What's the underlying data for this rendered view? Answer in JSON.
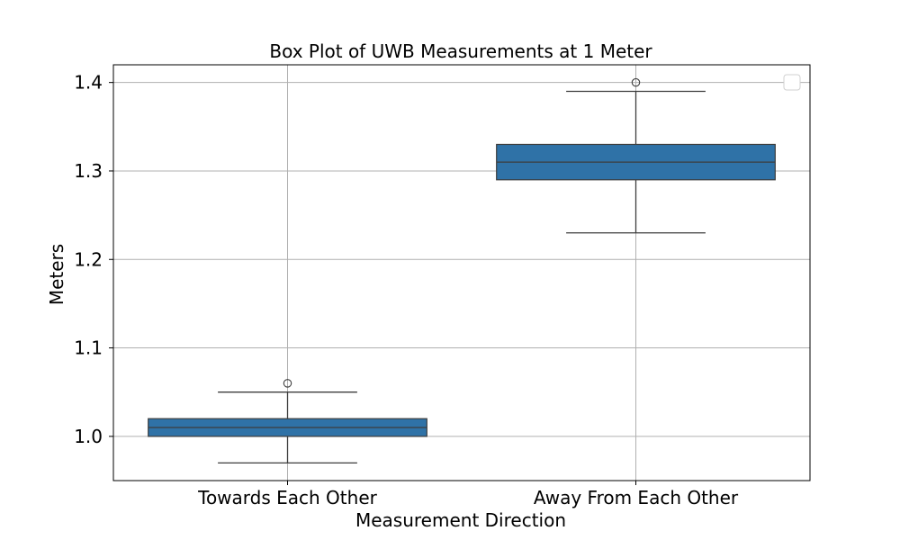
{
  "chart_data": {
    "type": "box",
    "title": "Box Plot of UWB Measurements at 1 Meter",
    "xlabel": "Measurement Direction",
    "ylabel": "Meters",
    "categories": [
      "Towards Each Other",
      "Away From Each Other"
    ],
    "ylim": [
      0.95,
      1.42
    ],
    "yticks": [
      1.0,
      1.1,
      1.2,
      1.3,
      1.4
    ],
    "ytick_labels": [
      "1.0",
      "1.1",
      "1.2",
      "1.3",
      "1.4"
    ],
    "grid": true,
    "legend_position": "top-right",
    "box_color": "#2f72a7",
    "boxes": [
      {
        "category": "Towards Each Other",
        "whisker_low": 0.97,
        "q1": 1.0,
        "median": 1.01,
        "q3": 1.02,
        "whisker_high": 1.05,
        "outliers": [
          1.06
        ]
      },
      {
        "category": "Away From Each Other",
        "whisker_low": 1.23,
        "q1": 1.29,
        "median": 1.31,
        "q3": 1.33,
        "whisker_high": 1.39,
        "outliers": [
          1.4
        ]
      }
    ]
  }
}
